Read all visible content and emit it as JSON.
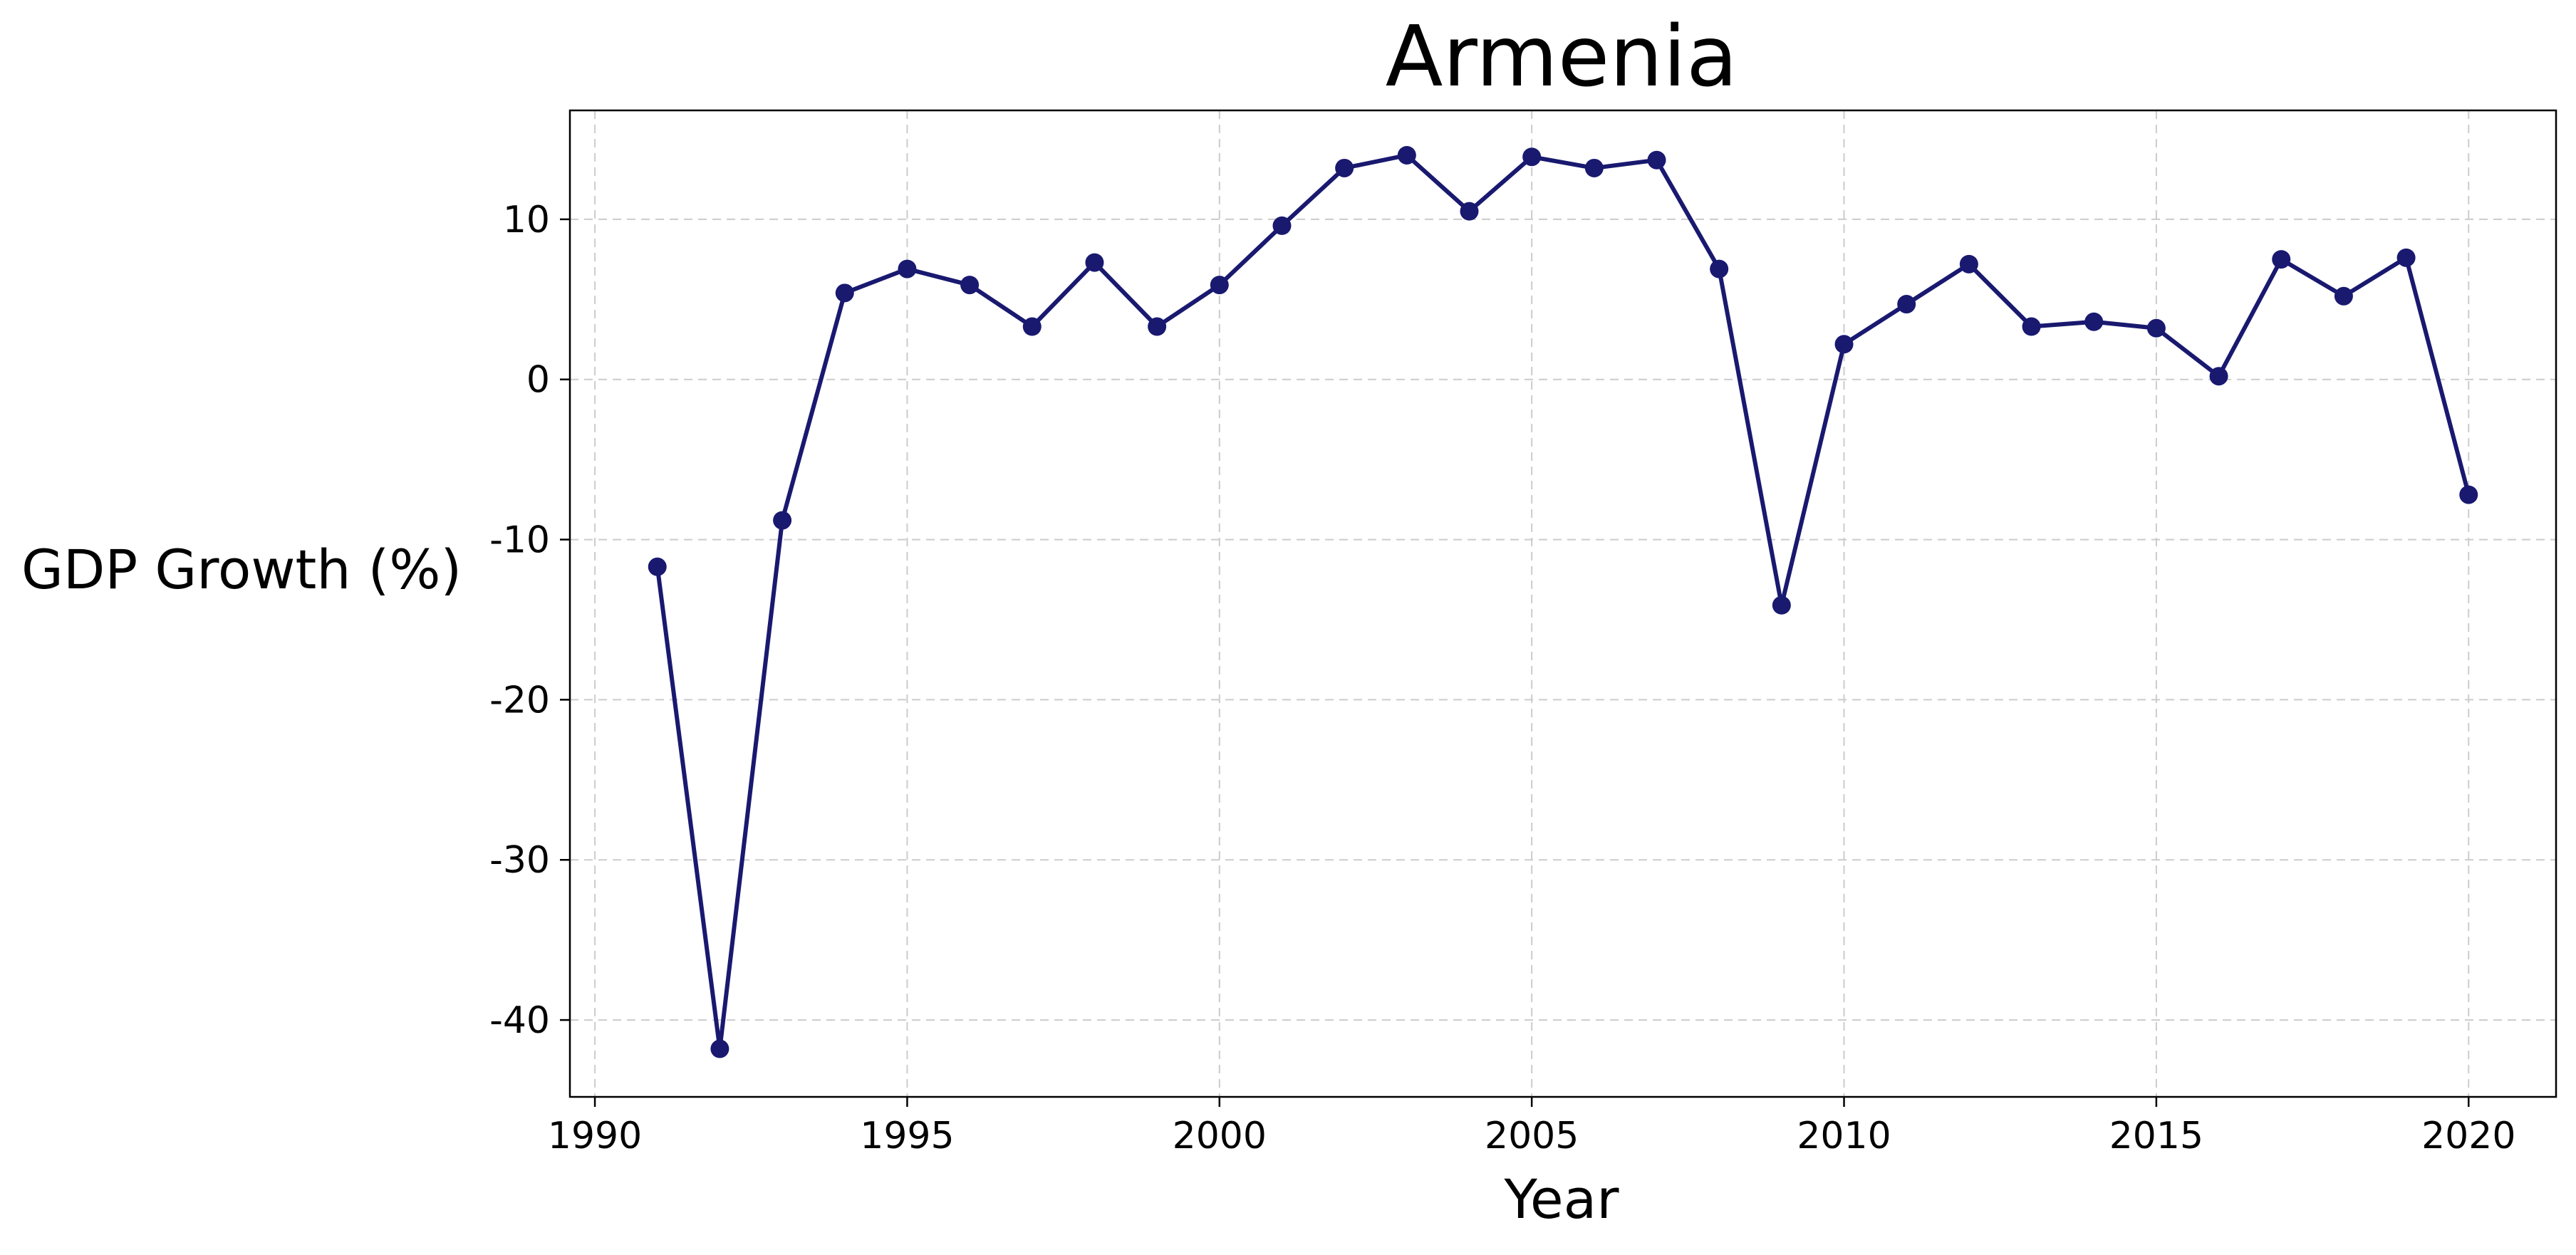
{
  "chart_data": {
    "type": "line",
    "title": "Armenia",
    "xlabel": "Year",
    "ylabel": "GDP Growth (%)",
    "xlim": [
      1989.6,
      2021.4
    ],
    "ylim": [
      -44.8,
      16.8
    ],
    "grid": true,
    "color": "#191970",
    "x_ticks": [
      1990,
      1995,
      2000,
      2005,
      2010,
      2015,
      2020
    ],
    "y_ticks": [
      -40,
      -30,
      -20,
      -10,
      0,
      10
    ],
    "series": [
      {
        "x": [
          1991,
          1992,
          1993,
          1994,
          1995,
          1996,
          1997,
          1998,
          1999,
          2000,
          2001,
          2002,
          2003,
          2004,
          2005,
          2006,
          2007,
          2008,
          2009,
          2010,
          2011,
          2012,
          2013,
          2014,
          2015,
          2016,
          2017,
          2018,
          2019,
          2020
        ],
        "y": [
          -11.7,
          -41.8,
          -8.8,
          5.4,
          6.9,
          5.9,
          3.3,
          7.3,
          3.3,
          5.9,
          9.6,
          13.2,
          14.0,
          10.5,
          13.9,
          13.2,
          13.7,
          6.9,
          -14.1,
          2.2,
          4.7,
          7.2,
          3.3,
          3.6,
          3.2,
          0.2,
          7.5,
          5.2,
          7.6,
          -7.2
        ]
      }
    ]
  }
}
